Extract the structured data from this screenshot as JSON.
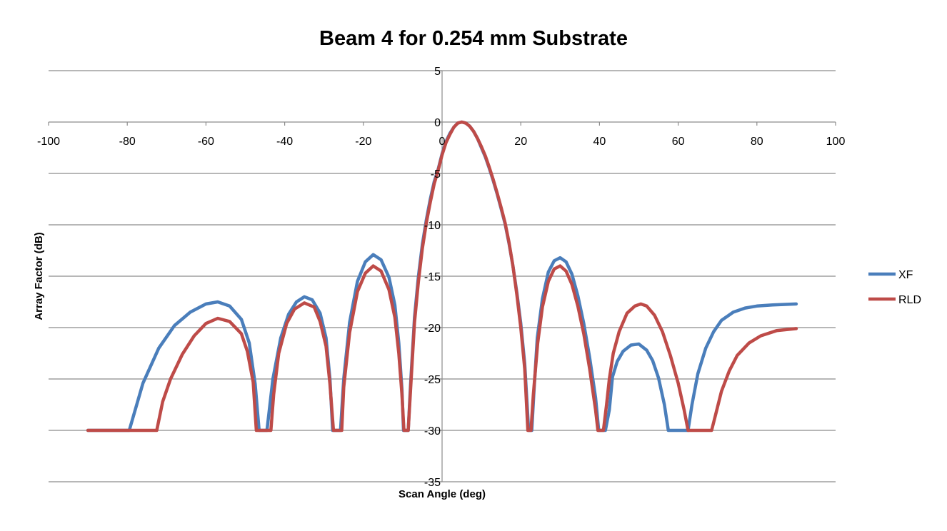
{
  "chart_data": {
    "type": "line",
    "title": "Beam 4 for 0.254 mm Substrate",
    "xlabel": "Scan Angle (deg)",
    "ylabel": "Array Factor (dB)",
    "xlim": [
      -100,
      100
    ],
    "ylim": [
      -35,
      5
    ],
    "x_ticks": [
      -100,
      -80,
      -60,
      -40,
      -20,
      0,
      20,
      40,
      60,
      80,
      100
    ],
    "y_ticks": [
      5,
      0,
      -5,
      -10,
      -15,
      -20,
      -25,
      -30,
      -35
    ],
    "x_tick_labels": [
      "-100",
      "-80",
      "-60",
      "-40",
      "-20",
      "0",
      "20",
      "40",
      "60",
      "80",
      "100"
    ],
    "y_tick_labels": [
      "5",
      "0",
      "-5",
      "-10",
      "-15",
      "-20",
      "-25",
      "-30",
      "-35"
    ],
    "grid": true,
    "legend_position": "right",
    "series": [
      {
        "name": "XF",
        "color": "#4a7ebb",
        "points": [
          [
            -90,
            -30
          ],
          [
            -79.5,
            -30
          ],
          [
            -76,
            -25.4
          ],
          [
            -72,
            -22
          ],
          [
            -68,
            -19.8
          ],
          [
            -64,
            -18.5
          ],
          [
            -60,
            -17.7
          ],
          [
            -57,
            -17.5
          ],
          [
            -54,
            -17.9
          ],
          [
            -51,
            -19.2
          ],
          [
            -49,
            -21.5
          ],
          [
            -47.5,
            -25.5
          ],
          [
            -46.5,
            -30
          ],
          [
            -44.5,
            -30
          ],
          [
            -43,
            -25
          ],
          [
            -41,
            -21
          ],
          [
            -39,
            -18.7
          ],
          [
            -37,
            -17.5
          ],
          [
            -35,
            -17.0
          ],
          [
            -33,
            -17.3
          ],
          [
            -31,
            -18.6
          ],
          [
            -29.5,
            -21
          ],
          [
            -28.5,
            -25
          ],
          [
            -27.8,
            -30
          ],
          [
            -25.8,
            -30
          ],
          [
            -25,
            -25
          ],
          [
            -23.5,
            -19.5
          ],
          [
            -21.5,
            -15.5
          ],
          [
            -19.5,
            -13.6
          ],
          [
            -17.5,
            -12.9
          ],
          [
            -15.5,
            -13.4
          ],
          [
            -13.5,
            -15.1
          ],
          [
            -12,
            -17.8
          ],
          [
            -11,
            -21.5
          ],
          [
            -10.2,
            -26
          ],
          [
            -9.8,
            -30
          ],
          [
            -8.6,
            -30
          ],
          [
            -8,
            -25.5
          ],
          [
            -7,
            -19
          ],
          [
            -6,
            -15
          ],
          [
            -5,
            -11.9
          ],
          [
            -4,
            -9.5
          ],
          [
            -3,
            -7.5
          ],
          [
            -2,
            -5.8
          ],
          [
            -1,
            -4.6
          ],
          [
            0,
            -3.1
          ],
          [
            1,
            -1.9
          ],
          [
            2,
            -1.1
          ],
          [
            3,
            -0.5
          ],
          [
            4,
            -0.1
          ],
          [
            5,
            0
          ],
          [
            6,
            -0.1
          ],
          [
            7,
            -0.4
          ],
          [
            8,
            -0.9
          ],
          [
            9,
            -1.6
          ],
          [
            10,
            -2.5
          ],
          [
            11,
            -3.4
          ],
          [
            12,
            -4.5
          ],
          [
            13,
            -5.7
          ],
          [
            14,
            -7.0
          ],
          [
            15,
            -8.4
          ],
          [
            16,
            -9.9
          ],
          [
            17,
            -11.8
          ],
          [
            18,
            -14
          ],
          [
            19,
            -16.6
          ],
          [
            20,
            -19.6
          ],
          [
            21,
            -23.5
          ],
          [
            22,
            -30
          ],
          [
            22.8,
            -30
          ],
          [
            23.3,
            -26.5
          ],
          [
            24.2,
            -21
          ],
          [
            25.5,
            -17.2
          ],
          [
            27,
            -14.6
          ],
          [
            28.5,
            -13.5
          ],
          [
            30,
            -13.2
          ],
          [
            31.5,
            -13.6
          ],
          [
            33,
            -14.8
          ],
          [
            34.5,
            -16.9
          ],
          [
            36,
            -19.6
          ],
          [
            37.5,
            -22.9
          ],
          [
            39,
            -26.8
          ],
          [
            39.8,
            -30
          ],
          [
            41.5,
            -30
          ],
          [
            42.5,
            -28
          ],
          [
            43.3,
            -24.8
          ],
          [
            44.5,
            -23.3
          ],
          [
            46,
            -22.3
          ],
          [
            48,
            -21.7
          ],
          [
            50,
            -21.6
          ],
          [
            52,
            -22.2
          ],
          [
            53.5,
            -23.2
          ],
          [
            55,
            -24.9
          ],
          [
            56.5,
            -27.5
          ],
          [
            57.5,
            -30
          ],
          [
            62.5,
            -30
          ],
          [
            63.5,
            -27.5
          ],
          [
            65,
            -24.5
          ],
          [
            67,
            -22
          ],
          [
            69,
            -20.4
          ],
          [
            71,
            -19.3
          ],
          [
            74,
            -18.5
          ],
          [
            77,
            -18.1
          ],
          [
            80,
            -17.9
          ],
          [
            84,
            -17.8
          ],
          [
            90,
            -17.7
          ]
        ]
      },
      {
        "name": "RLD",
        "color": "#be4b48",
        "points": [
          [
            -90,
            -30
          ],
          [
            -72.5,
            -30
          ],
          [
            -71,
            -27.2
          ],
          [
            -69,
            -25
          ],
          [
            -66,
            -22.6
          ],
          [
            -63,
            -20.8
          ],
          [
            -60,
            -19.6
          ],
          [
            -57,
            -19.1
          ],
          [
            -54,
            -19.4
          ],
          [
            -51,
            -20.6
          ],
          [
            -49.5,
            -22.3
          ],
          [
            -48,
            -25.3
          ],
          [
            -47.2,
            -30
          ],
          [
            -43.5,
            -30
          ],
          [
            -42.8,
            -26.5
          ],
          [
            -41.5,
            -22.5
          ],
          [
            -39.5,
            -19.6
          ],
          [
            -37.5,
            -18.2
          ],
          [
            -35,
            -17.6
          ],
          [
            -32.5,
            -18
          ],
          [
            -31,
            -19.4
          ],
          [
            -29.5,
            -21.8
          ],
          [
            -28.5,
            -25.5
          ],
          [
            -27.6,
            -30
          ],
          [
            -25.5,
            -30
          ],
          [
            -25,
            -25.8
          ],
          [
            -23.5,
            -20.5
          ],
          [
            -21.5,
            -16.5
          ],
          [
            -19.5,
            -14.7
          ],
          [
            -17.5,
            -14.0
          ],
          [
            -15.5,
            -14.5
          ],
          [
            -13.5,
            -16.3
          ],
          [
            -12,
            -19
          ],
          [
            -11,
            -22.5
          ],
          [
            -10.2,
            -26.5
          ],
          [
            -9.7,
            -30
          ],
          [
            -8.6,
            -30
          ],
          [
            -8,
            -26
          ],
          [
            -7,
            -19.5
          ],
          [
            -6,
            -15.5
          ],
          [
            -5,
            -12.3
          ],
          [
            -4,
            -9.8
          ],
          [
            -3,
            -7.8
          ],
          [
            -2,
            -6.0
          ],
          [
            -1,
            -4.7
          ],
          [
            0,
            -3.2
          ],
          [
            1,
            -2.0
          ],
          [
            2,
            -1.2
          ],
          [
            3,
            -0.5
          ],
          [
            4,
            -0.1
          ],
          [
            5,
            0
          ],
          [
            6,
            -0.1
          ],
          [
            7,
            -0.4
          ],
          [
            8,
            -0.9
          ],
          [
            9,
            -1.6
          ],
          [
            10,
            -2.4
          ],
          [
            11,
            -3.3
          ],
          [
            12,
            -4.4
          ],
          [
            13,
            -5.6
          ],
          [
            14,
            -6.9
          ],
          [
            15,
            -8.3
          ],
          [
            16,
            -9.8
          ],
          [
            17,
            -11.7
          ],
          [
            18,
            -14
          ],
          [
            19,
            -16.8
          ],
          [
            20,
            -20
          ],
          [
            21,
            -24
          ],
          [
            21.8,
            -30
          ],
          [
            22.6,
            -30
          ],
          [
            23.2,
            -26.5
          ],
          [
            24.3,
            -21.5
          ],
          [
            25.5,
            -18
          ],
          [
            27,
            -15.5
          ],
          [
            28.5,
            -14.3
          ],
          [
            30,
            -14.0
          ],
          [
            31.5,
            -14.5
          ],
          [
            33,
            -15.8
          ],
          [
            34.5,
            -17.9
          ],
          [
            36,
            -20.6
          ],
          [
            37.5,
            -24
          ],
          [
            39,
            -28
          ],
          [
            39.6,
            -30
          ],
          [
            41,
            -30
          ],
          [
            41.8,
            -27.5
          ],
          [
            42.5,
            -25
          ],
          [
            43.5,
            -22.5
          ],
          [
            45,
            -20.4
          ],
          [
            47,
            -18.6
          ],
          [
            49,
            -17.9
          ],
          [
            50.5,
            -17.7
          ],
          [
            52,
            -17.9
          ],
          [
            54,
            -18.8
          ],
          [
            56,
            -20.4
          ],
          [
            58,
            -22.7
          ],
          [
            60,
            -25.4
          ],
          [
            61.5,
            -28
          ],
          [
            62.5,
            -30
          ],
          [
            68.5,
            -30
          ],
          [
            69.5,
            -28.5
          ],
          [
            71,
            -26.2
          ],
          [
            73,
            -24.2
          ],
          [
            75,
            -22.7
          ],
          [
            78,
            -21.5
          ],
          [
            81,
            -20.8
          ],
          [
            85,
            -20.3
          ],
          [
            90,
            -20.1
          ]
        ]
      }
    ]
  }
}
